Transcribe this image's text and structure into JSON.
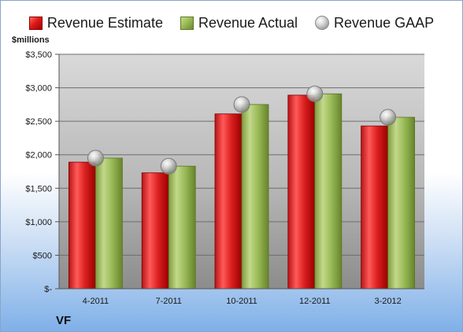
{
  "colors": {
    "estimate": "#d42a2a",
    "actual": "#9bbb59",
    "gaap": "#b8b8b8",
    "plot_top": "#d9d9d9",
    "plot_bottom": "#8c8c8c",
    "gridline": "#6e6e6e"
  },
  "legend": {
    "estimate": "Revenue Estimate",
    "actual": "Revenue Actual",
    "gaap": "Revenue GAAP"
  },
  "units_label": "$millions",
  "company_label": "VF",
  "chart_data": {
    "type": "bar",
    "categories": [
      "4-2011",
      "7-2011",
      "10-2011",
      "12-2011",
      "3-2012"
    ],
    "series": [
      {
        "name": "Revenue Estimate",
        "kind": "bar",
        "values": [
          1890,
          1730,
          2610,
          2890,
          2430
        ]
      },
      {
        "name": "Revenue Actual",
        "kind": "bar",
        "values": [
          1950,
          1830,
          2750,
          2910,
          2560
        ]
      },
      {
        "name": "Revenue GAAP",
        "kind": "marker",
        "values": [
          1950,
          1830,
          2750,
          2910,
          2560
        ]
      }
    ],
    "ylim": [
      0,
      3500
    ],
    "yticks": [
      0,
      500,
      1000,
      1500,
      2000,
      2500,
      3000,
      3500
    ],
    "ytick_labels": [
      "$-",
      "$500",
      "$1,000",
      "$1,500",
      "$2,000",
      "$2,500",
      "$3,000",
      "$3,500"
    ],
    "grid": true,
    "legend_position": "top"
  }
}
